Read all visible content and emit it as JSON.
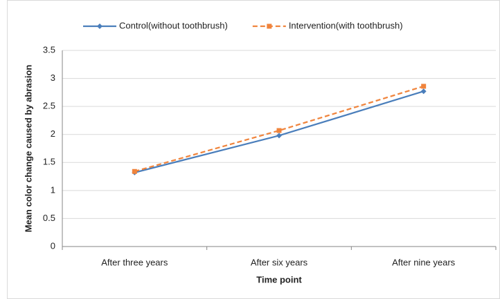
{
  "chart_data": {
    "type": "line",
    "categories": [
      "After three years",
      "After six years",
      "After nine years"
    ],
    "series": [
      {
        "name": "Control(without toothbrush)",
        "color": "#4a7ebb",
        "marker": "diamond",
        "dashed": false,
        "values": [
          1.32,
          1.98,
          2.77
        ]
      },
      {
        "name": "Intervention(with toothbrush)",
        "color": "#f0843c",
        "marker": "square",
        "dashed": true,
        "values": [
          1.34,
          2.07,
          2.86
        ]
      }
    ],
    "x_label": "Time point",
    "y_label": "Mean color change caused by abrasion",
    "ylim": [
      0,
      3.5
    ],
    "yticks": [
      0,
      0.5,
      1,
      1.5,
      2,
      2.5,
      3,
      3.5
    ],
    "grid": true,
    "legend": "top"
  }
}
